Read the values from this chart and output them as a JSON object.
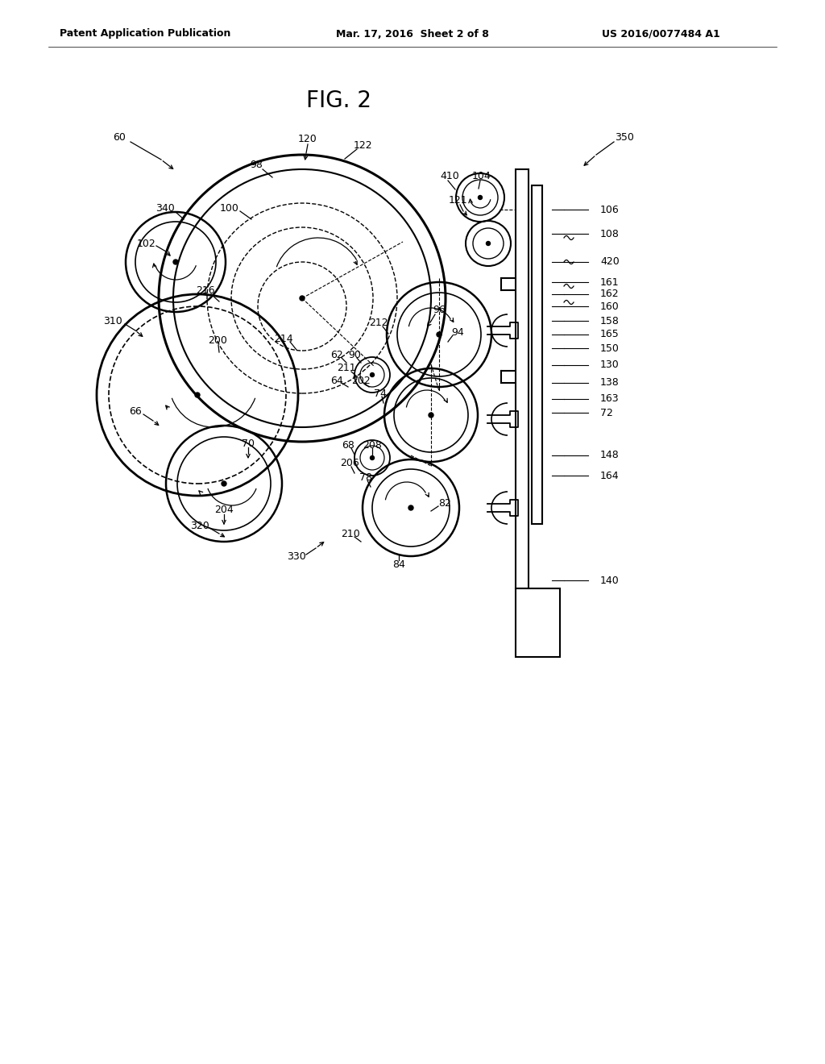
{
  "header_left": "Patent Application Publication",
  "header_center": "Mar. 17, 2016  Sheet 2 of 8",
  "header_right": "US 2016/0077484 A1",
  "fig_title": "FIG. 2",
  "bg_color": "#ffffff",
  "lc": "#000000",
  "fig_w": 10.24,
  "fig_h": 13.2,
  "dpi": 100
}
